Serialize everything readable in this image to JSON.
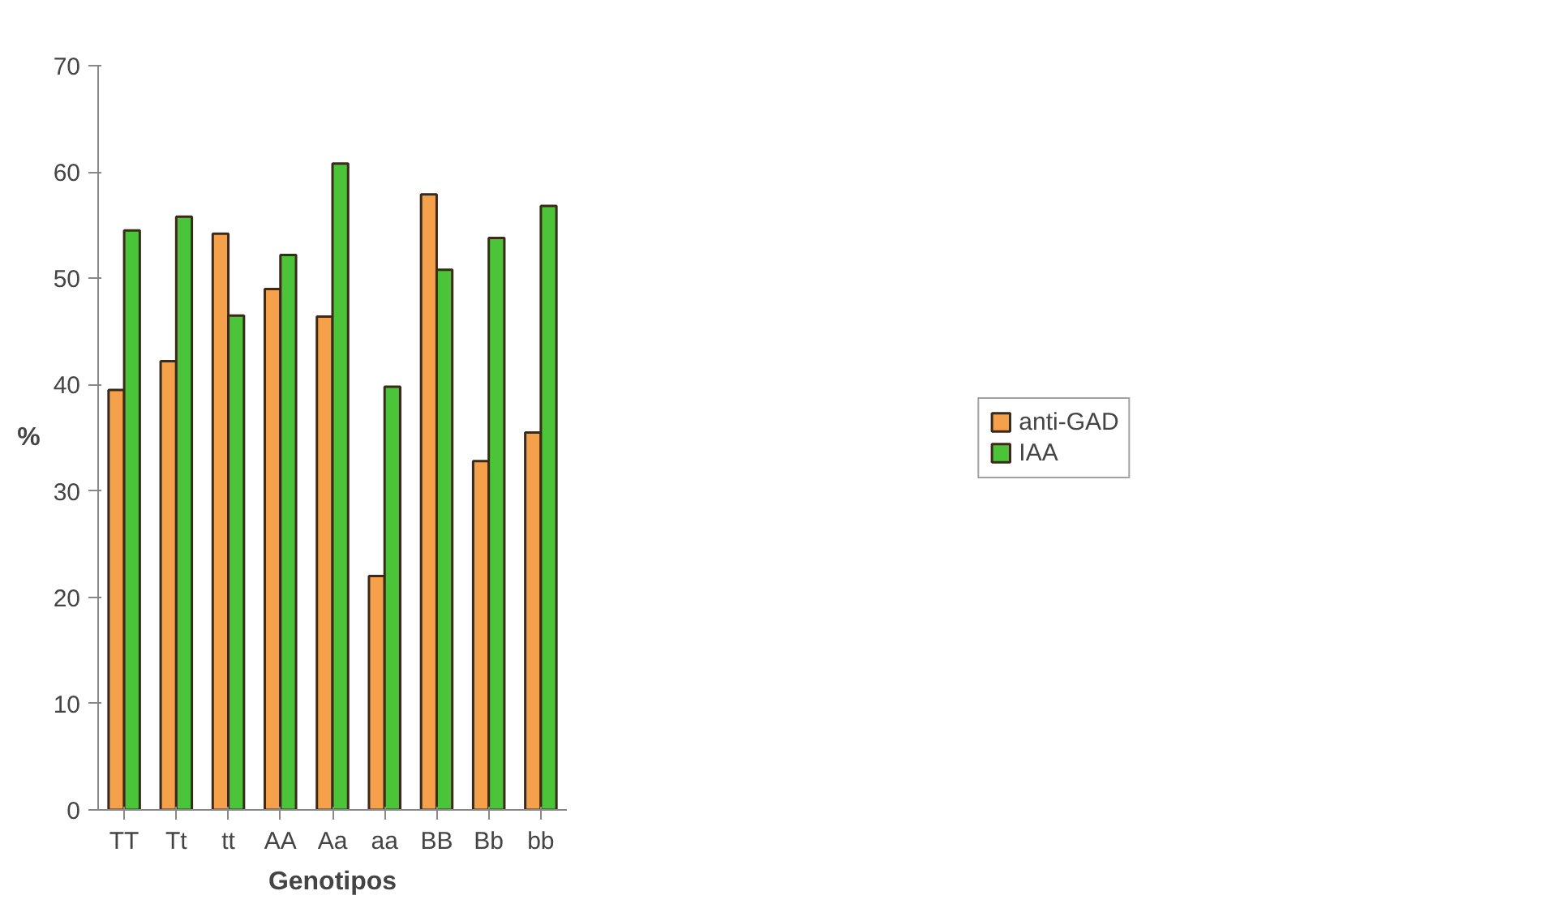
{
  "chart_data": {
    "type": "bar",
    "xlabel": "Genotipos",
    "ylabel": "%",
    "categories": [
      "TT",
      "Tt",
      "tt",
      "AA",
      "Aa",
      "aa",
      "BB",
      "Bb",
      "bb"
    ],
    "series": [
      {
        "name": "anti-GAD",
        "color": "#f5a04a",
        "values": [
          39.5,
          42.2,
          54.2,
          49.0,
          46.4,
          22.0,
          57.9,
          32.8,
          35.5
        ]
      },
      {
        "name": "IAA",
        "color": "#4cc43a",
        "values": [
          54.5,
          55.8,
          46.5,
          52.2,
          60.8,
          39.8,
          50.8,
          53.8,
          56.8
        ]
      }
    ],
    "ylim": [
      0,
      70
    ],
    "yticks": [
      0,
      10,
      20,
      30,
      40,
      50,
      60,
      70
    ],
    "grid": false,
    "legend": "right"
  }
}
